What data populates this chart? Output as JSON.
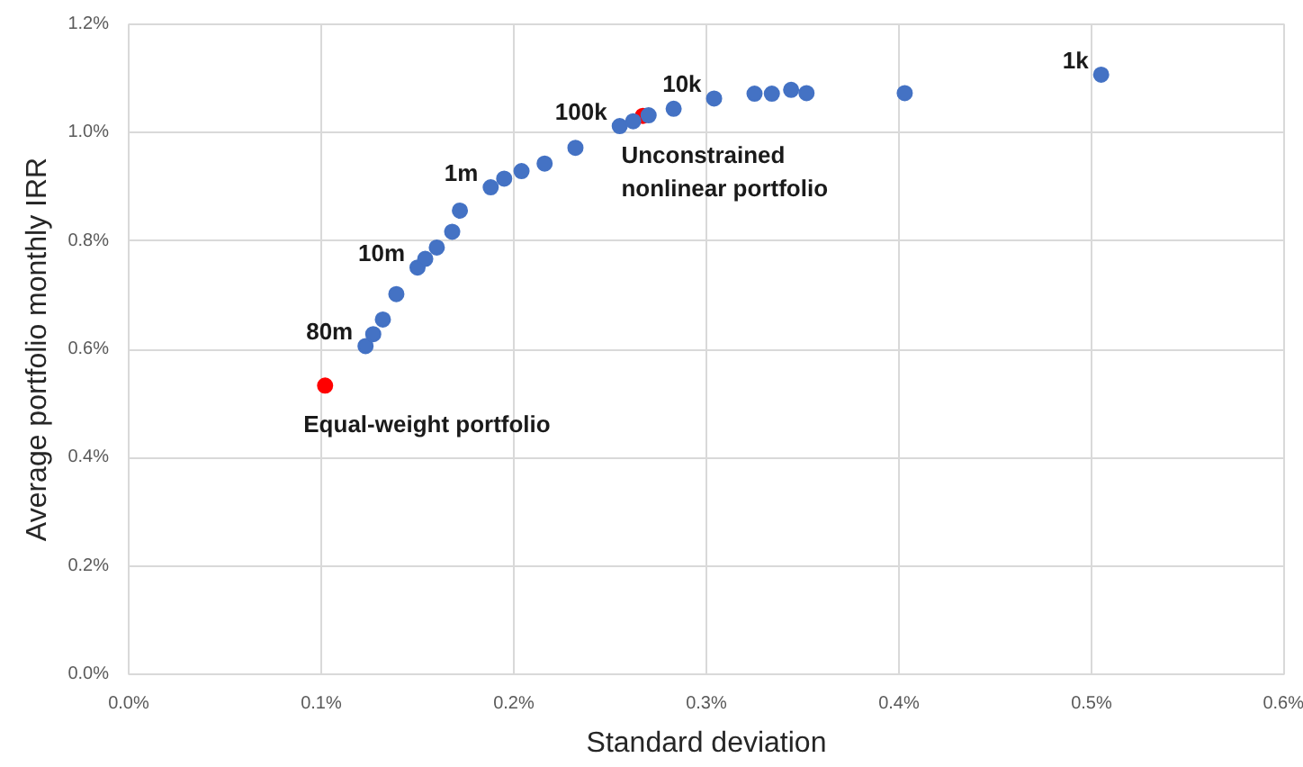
{
  "chart_data": {
    "type": "scatter",
    "xlabel": "Standard deviation",
    "ylabel": "Average portfolio monthly IRR",
    "xlim": [
      0,
      0.6
    ],
    "ylim": [
      0,
      1.2
    ],
    "xticks": [
      {
        "value": 0,
        "label": "0.0%"
      },
      {
        "value": 0.1,
        "label": "0.1%"
      },
      {
        "value": 0.2,
        "label": "0.2%"
      },
      {
        "value": 0.3,
        "label": "0.3%"
      },
      {
        "value": 0.4,
        "label": "0.4%"
      },
      {
        "value": 0.5,
        "label": "0.5%"
      },
      {
        "value": 0.6,
        "label": "0.6%"
      }
    ],
    "yticks": [
      {
        "value": 0,
        "label": "0.0%"
      },
      {
        "value": 0.2,
        "label": "0.2%"
      },
      {
        "value": 0.4,
        "label": "0.4%"
      },
      {
        "value": 0.6,
        "label": "0.6%"
      },
      {
        "value": 0.8,
        "label": "0.8%"
      },
      {
        "value": 1.0,
        "label": "1.0%"
      },
      {
        "value": 1.2,
        "label": "1.2%"
      }
    ],
    "grid": true,
    "marker": "circle",
    "series": [
      {
        "color": "#ff0000",
        "x": [
          0.102,
          0.267
        ],
        "values": [
          0.533,
          1.031
        ]
      },
      {
        "color": "#4472c4",
        "x": [
          0.123,
          0.127,
          0.132,
          0.139,
          0.15,
          0.154,
          0.16,
          0.168,
          0.172,
          0.188,
          0.195,
          0.204,
          0.216,
          0.232,
          0.255,
          0.262,
          0.27,
          0.283,
          0.304,
          0.325,
          0.334,
          0.344,
          0.352,
          0.403,
          0.505
        ],
        "values": [
          0.606,
          0.628,
          0.655,
          0.702,
          0.751,
          0.767,
          0.788,
          0.817,
          0.856,
          0.899,
          0.915,
          0.929,
          0.943,
          0.972,
          1.012,
          1.021,
          1.032,
          1.044,
          1.063,
          1.072,
          1.072,
          1.079,
          1.073,
          1.073,
          1.107
        ]
      }
    ],
    "annotations": [
      {
        "text": "80m",
        "x": 0.123,
        "y": 0.606
      },
      {
        "text": "10m",
        "x": 0.15,
        "y": 0.751
      },
      {
        "text": "1m",
        "x": 0.188,
        "y": 0.899
      },
      {
        "text": "100k",
        "x": 0.255,
        "y": 1.012
      },
      {
        "text": "10k",
        "x": 0.304,
        "y": 1.063
      },
      {
        "text": "1k",
        "x": 0.505,
        "y": 1.107
      },
      {
        "text": "Equal-weight portfolio",
        "x": 0.102,
        "y": 0.533
      },
      {
        "text": "Unconstrained\nnonlinear portfolio",
        "x": 0.267,
        "y": 1.031
      }
    ]
  }
}
